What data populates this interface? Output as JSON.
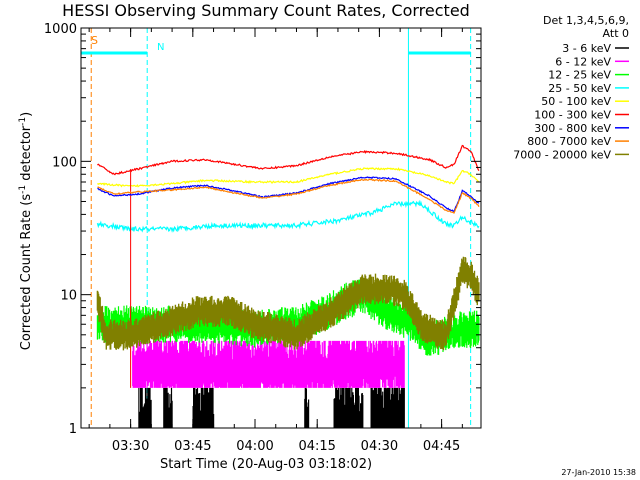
{
  "chart_data": {
    "type": "line",
    "title": "HESSI Observing Summary Count Rates, Corrected",
    "xlabel": "Start Time (20-Aug-03 03:18:02)",
    "ylabel": "Corrected Count Rate (s",
    "ylabel_sup1": "-1",
    "ylabel_mid": " detector",
    "ylabel_sup2": "-1",
    "ylabel_end": ")",
    "y_scale": "log",
    "ylim": [
      1,
      1000
    ],
    "xlim": [
      "03:18:02",
      "04:54:30"
    ],
    "y_ticks": [
      {
        "value": 1,
        "label": "1"
      },
      {
        "value": 10,
        "label": "10"
      },
      {
        "value": 100,
        "label": "100"
      },
      {
        "value": 1000,
        "label": "1000"
      }
    ],
    "x_ticks": [
      {
        "time": "03:30",
        "label": "03:30"
      },
      {
        "time": "03:45",
        "label": "03:45"
      },
      {
        "time": "04:00",
        "label": "04:00"
      },
      {
        "time": "04:15",
        "label": "04:15"
      },
      {
        "time": "04:30",
        "label": "04:30"
      },
      {
        "time": "04:45",
        "label": "04:45"
      }
    ],
    "legend_title": [
      "Det 1,3,4,5,6,9,",
      "Att 0"
    ],
    "legend_position": "right",
    "timestamp": "27-Jan-2010 15:38",
    "flags": [
      {
        "label": "S",
        "color": "#ff8000"
      },
      {
        "label": "N",
        "color": "#00ffff"
      }
    ],
    "markers": [
      {
        "time": "03:20:30",
        "color": "#ff8000",
        "style": "dashed"
      },
      {
        "time": "03:18:02",
        "color": "#00ffff",
        "style": "solid"
      },
      {
        "time": "03:34:00",
        "color": "#00ffff",
        "style": "dashed"
      },
      {
        "time": "04:37:00",
        "color": "#00ffff",
        "style": "solid"
      },
      {
        "time": "04:52:00",
        "color": "#00ffff",
        "style": "dashed"
      }
    ],
    "night_bars": [
      {
        "start": "03:18:02",
        "end": "03:34:00",
        "value": 650
      },
      {
        "start": "04:37:00",
        "end": "04:52:00",
        "value": 650
      }
    ],
    "series": [
      {
        "name": "3 - 6 keV",
        "color": "#000000",
        "style": "spiky",
        "base": 1,
        "spread": 0.8,
        "min": 1,
        "max": 2,
        "active": [
          [
            "03:32:00",
            "03:35:00"
          ],
          [
            "03:38:00",
            "03:40:00"
          ],
          [
            "03:45:00",
            "03:50:00"
          ],
          [
            "04:12:00",
            "04:13:00"
          ],
          [
            "04:19:00",
            "04:26:00"
          ],
          [
            "04:28:00",
            "04:36:00"
          ]
        ],
        "points": [
          [
            "03:22:00",
            1
          ],
          [
            "04:54:00",
            1
          ]
        ]
      },
      {
        "name": "6 - 12 keV",
        "color": "#ff00ff",
        "style": "spiky",
        "base": 3,
        "spread": 0.5,
        "min": 2,
        "max": 4.5,
        "active": [
          [
            "03:30:30",
            "04:36:00"
          ]
        ],
        "points": [
          [
            "03:30:30",
            2.7
          ],
          [
            "04:36:00",
            2.9
          ]
        ]
      },
      {
        "name": "12 - 25 keV",
        "color": "#00ff00",
        "style": "spiky",
        "base": 6,
        "spread": 0.25,
        "min": 3.5,
        "max": 13,
        "active": [
          [
            "03:22:00",
            "04:54:00"
          ]
        ],
        "points": [
          [
            "03:22:00",
            6
          ],
          [
            "03:50:00",
            6
          ],
          [
            "04:00:00",
            5.5
          ],
          [
            "04:10:00",
            6
          ],
          [
            "04:16:00",
            7
          ],
          [
            "04:22:00",
            9
          ],
          [
            "04:26:00",
            10
          ],
          [
            "04:30:00",
            8
          ],
          [
            "04:34:00",
            7
          ],
          [
            "04:38:00",
            6
          ],
          [
            "04:42:00",
            4.5
          ],
          [
            "04:46:00",
            5
          ],
          [
            "04:50:00",
            5.5
          ],
          [
            "04:54:00",
            5.5
          ]
        ]
      },
      {
        "name": "25 - 50 keV",
        "color": "#00ffff",
        "style": "line",
        "noise": 0.04,
        "points": [
          [
            "03:22:00",
            34
          ],
          [
            "03:30:00",
            31
          ],
          [
            "03:40:00",
            31
          ],
          [
            "03:50:00",
            33
          ],
          [
            "04:00:00",
            33
          ],
          [
            "04:10:00",
            33
          ],
          [
            "04:20:00",
            36
          ],
          [
            "04:28:00",
            41
          ],
          [
            "04:34:00",
            48
          ],
          [
            "04:40:00",
            48
          ],
          [
            "04:46:00",
            34
          ],
          [
            "04:48:00",
            33
          ],
          [
            "04:50:00",
            38
          ],
          [
            "04:52:00",
            35
          ],
          [
            "04:54:00",
            33
          ]
        ]
      },
      {
        "name": "50 - 100 keV",
        "color": "#ffff00",
        "style": "line",
        "noise": 0.015,
        "points": [
          [
            "03:22:00",
            68
          ],
          [
            "03:30:00",
            65
          ],
          [
            "03:40:00",
            68
          ],
          [
            "03:48:00",
            72
          ],
          [
            "04:00:00",
            70
          ],
          [
            "04:10:00",
            70
          ],
          [
            "04:18:00",
            80
          ],
          [
            "04:26:00",
            88
          ],
          [
            "04:34:00",
            88
          ],
          [
            "04:42:00",
            78
          ],
          [
            "04:46:00",
            70
          ],
          [
            "04:48:00",
            68
          ],
          [
            "04:50:00",
            85
          ],
          [
            "04:52:00",
            80
          ],
          [
            "04:54:00",
            70
          ]
        ]
      },
      {
        "name": "100 - 300 keV",
        "color": "#ff0000",
        "style": "line",
        "noise": 0.015,
        "spike": {
          "time": "03:30:00",
          "to": 2
        },
        "points": [
          [
            "03:22:00",
            95
          ],
          [
            "03:26:00",
            80
          ],
          [
            "03:32:00",
            88
          ],
          [
            "03:40:00",
            100
          ],
          [
            "03:48:00",
            103
          ],
          [
            "03:55:00",
            95
          ],
          [
            "04:02:00",
            88
          ],
          [
            "04:10:00",
            93
          ],
          [
            "04:18:00",
            108
          ],
          [
            "04:26:00",
            118
          ],
          [
            "04:34:00",
            115
          ],
          [
            "04:42:00",
            103
          ],
          [
            "04:46:00",
            90
          ],
          [
            "04:48:00",
            95
          ],
          [
            "04:50:00",
            130
          ],
          [
            "04:52:00",
            120
          ],
          [
            "04:54:00",
            85
          ]
        ]
      },
      {
        "name": "300 - 800 keV",
        "color": "#0000ff",
        "style": "line",
        "noise": 0.012,
        "points": [
          [
            "03:22:00",
            62
          ],
          [
            "03:26:00",
            55
          ],
          [
            "03:32:00",
            57
          ],
          [
            "03:40:00",
            63
          ],
          [
            "03:48:00",
            66
          ],
          [
            "03:55:00",
            60
          ],
          [
            "04:02:00",
            54
          ],
          [
            "04:10:00",
            58
          ],
          [
            "04:18:00",
            68
          ],
          [
            "04:26:00",
            76
          ],
          [
            "04:34:00",
            74
          ],
          [
            "04:42:00",
            55
          ],
          [
            "04:46:00",
            45
          ],
          [
            "04:48:00",
            42
          ],
          [
            "04:50:00",
            60
          ],
          [
            "04:52:00",
            55
          ],
          [
            "04:54:00",
            48
          ]
        ]
      },
      {
        "name": "800 - 7000 keV",
        "color": "#ff8000",
        "style": "line",
        "noise": 0.012,
        "points": [
          [
            "03:22:00",
            64
          ],
          [
            "03:26:00",
            57
          ],
          [
            "03:32:00",
            59
          ],
          [
            "03:40:00",
            61
          ],
          [
            "03:48:00",
            64
          ],
          [
            "03:55:00",
            58
          ],
          [
            "04:02:00",
            53
          ],
          [
            "04:10:00",
            57
          ],
          [
            "04:18:00",
            66
          ],
          [
            "04:26:00",
            73
          ],
          [
            "04:34:00",
            71
          ],
          [
            "04:42:00",
            52
          ],
          [
            "04:46:00",
            43
          ],
          [
            "04:48:00",
            41
          ],
          [
            "04:50:00",
            58
          ],
          [
            "04:52:00",
            53
          ],
          [
            "04:54:00",
            46
          ]
        ]
      },
      {
        "name": "7000 - 20000 keV",
        "color": "#808000",
        "style": "band",
        "spread": 0.18,
        "points": [
          [
            "03:22:00",
            9
          ],
          [
            "03:24:00",
            5
          ],
          [
            "03:30:00",
            5
          ],
          [
            "03:38:00",
            6
          ],
          [
            "03:46:00",
            7.5
          ],
          [
            "03:54:00",
            7.5
          ],
          [
            "04:00:00",
            6
          ],
          [
            "04:10:00",
            5
          ],
          [
            "04:14:00",
            6
          ],
          [
            "04:20:00",
            8
          ],
          [
            "04:26:00",
            11
          ],
          [
            "04:32:00",
            11
          ],
          [
            "04:36:00",
            10
          ],
          [
            "04:40:00",
            6
          ],
          [
            "04:44:00",
            5
          ],
          [
            "04:46:00",
            5
          ],
          [
            "04:50:00",
            15
          ],
          [
            "04:52:00",
            14
          ],
          [
            "04:54:00",
            10
          ]
        ]
      }
    ]
  }
}
